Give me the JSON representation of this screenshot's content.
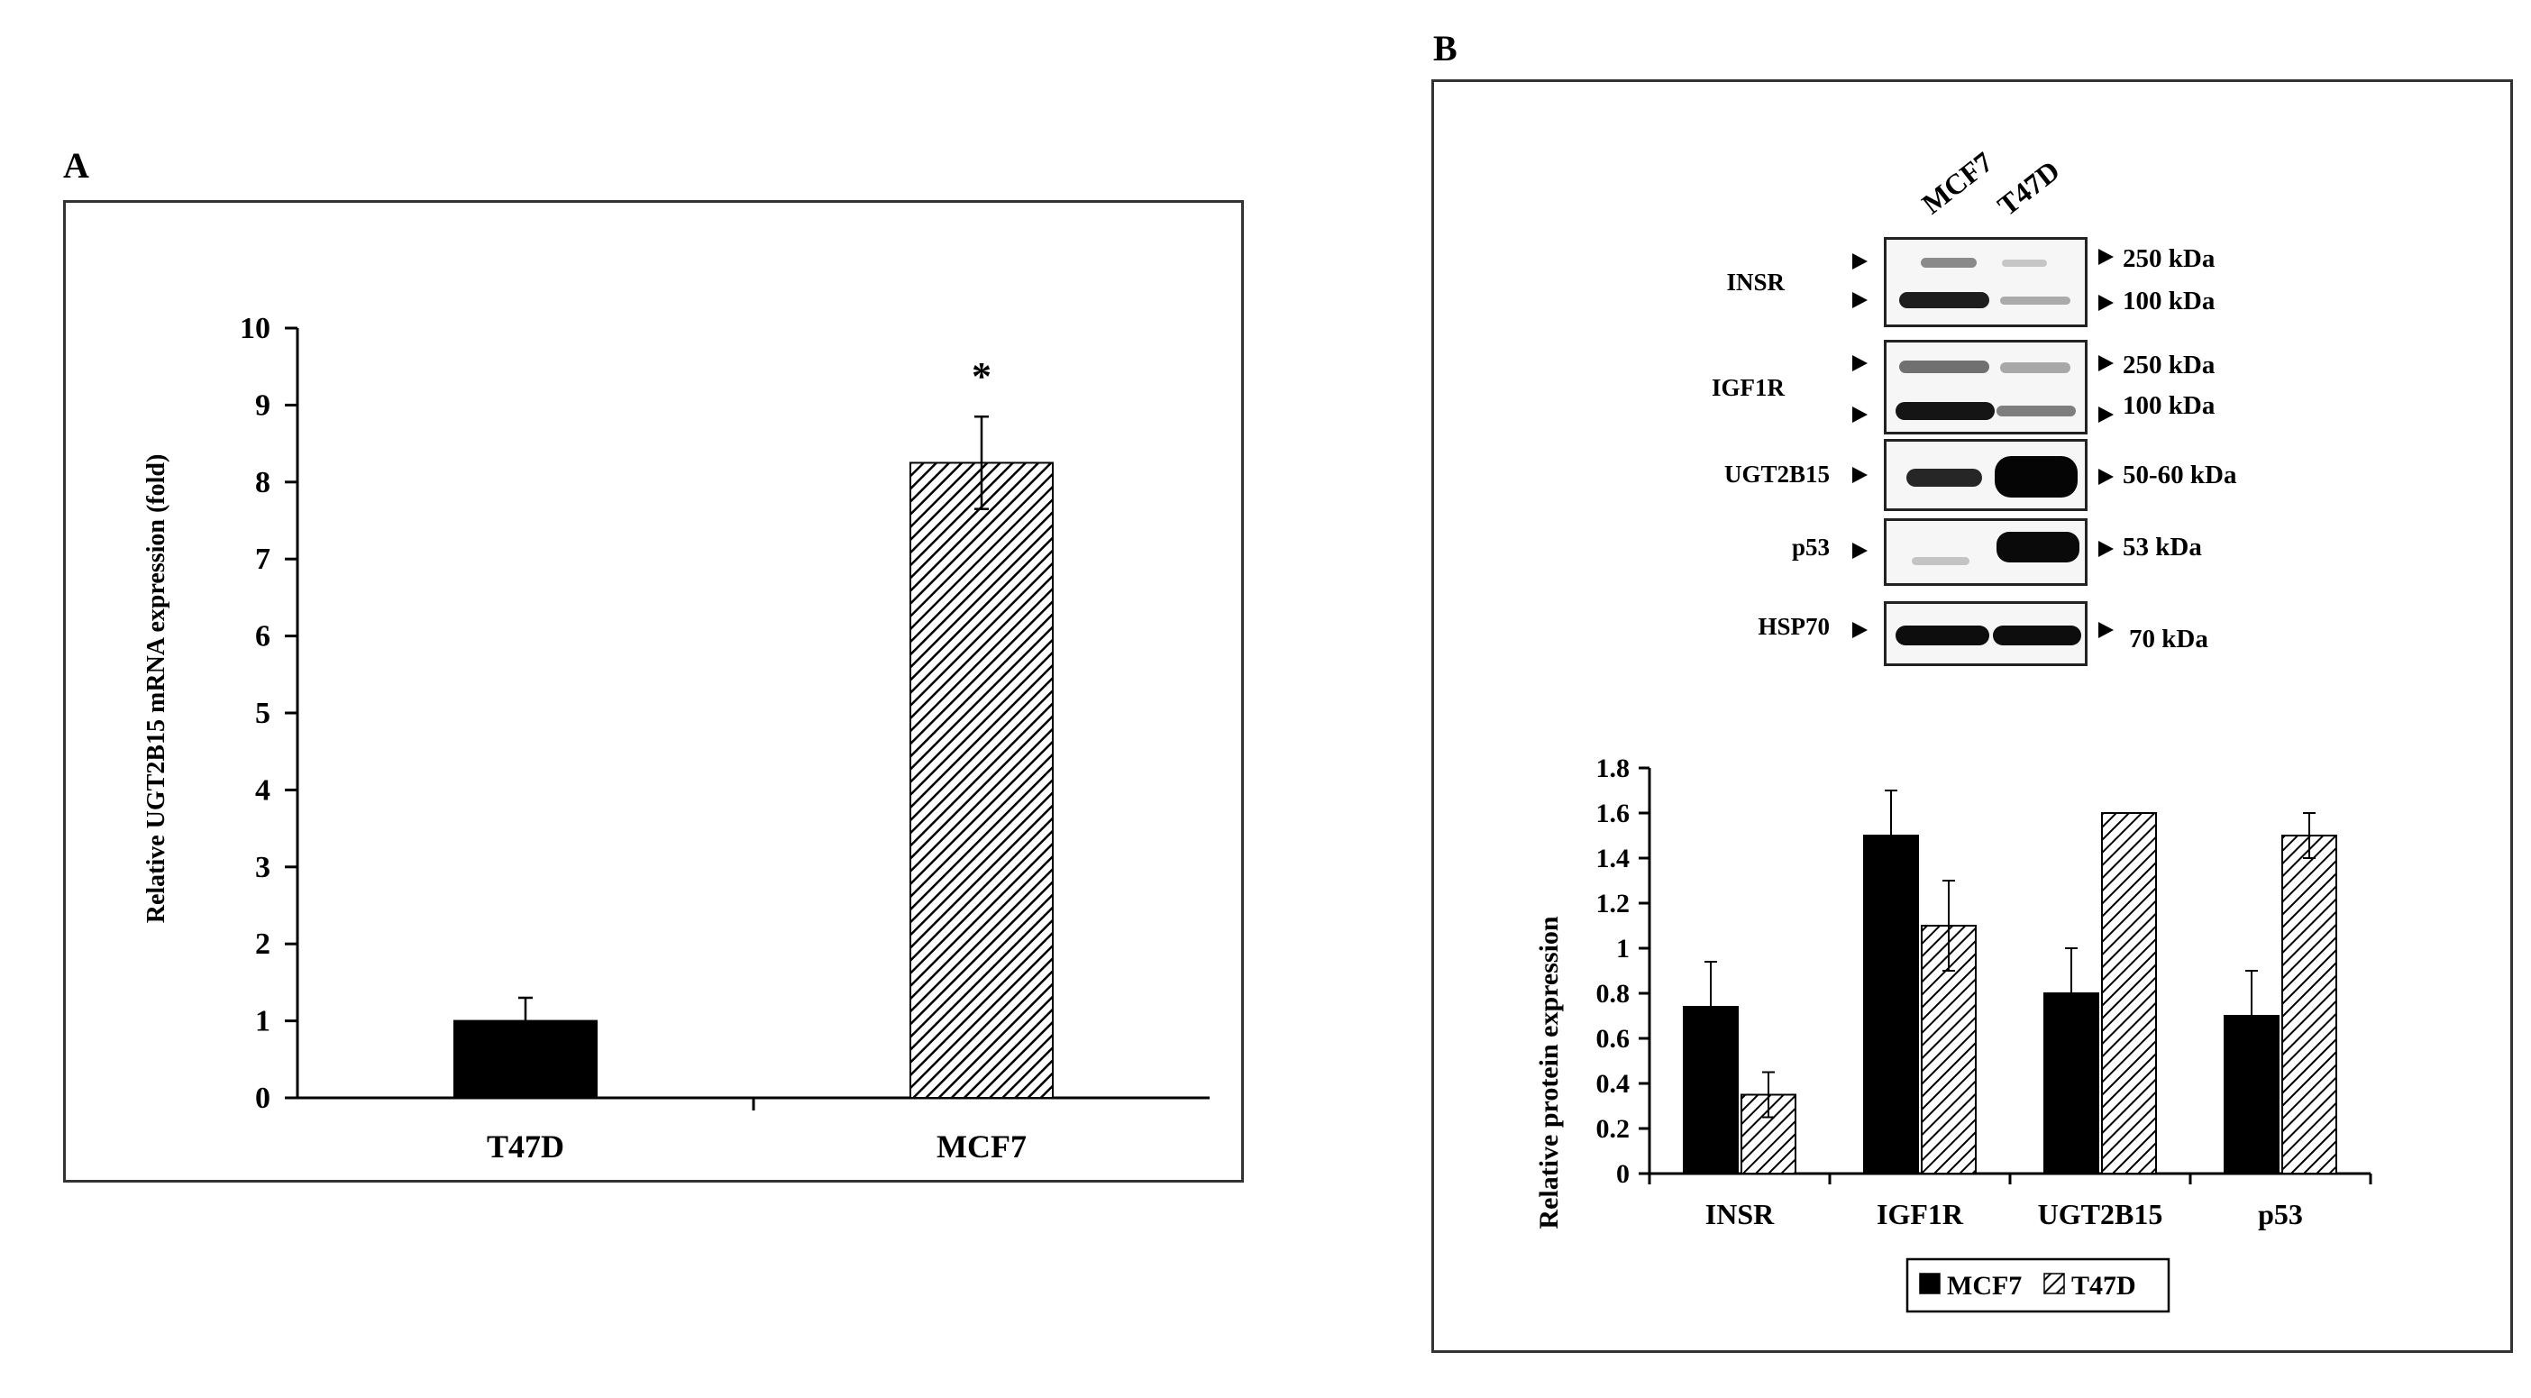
{
  "panel_a": {
    "letter": "A"
  },
  "panel_b": {
    "letter": "B"
  },
  "chart_data": [
    {
      "type": "bar",
      "title": "",
      "categories": [
        "T47D",
        "MCF7"
      ],
      "values": [
        1.0,
        8.25
      ],
      "errors": [
        0.3,
        0.6
      ],
      "annotations": [
        "",
        "*"
      ],
      "xlabel": "",
      "ylabel": "Relative UGT2B15 mRNA expression (fold)",
      "ylim": [
        0,
        10
      ],
      "yticks": [
        "0",
        "1",
        "2",
        "3",
        "4",
        "5",
        "6",
        "7",
        "8",
        "9",
        "10"
      ],
      "grid": false,
      "fills": [
        "solid",
        "hatched"
      ]
    },
    {
      "type": "bar",
      "title": "",
      "categories": [
        "INSR",
        "IGF1R",
        "UGT2B15",
        "p53"
      ],
      "series": [
        {
          "name": "MCF7",
          "values": [
            0.74,
            1.5,
            0.8,
            0.7
          ],
          "errors": [
            0.2,
            0.2,
            0.2,
            0.2
          ],
          "fill": "solid"
        },
        {
          "name": "T47D",
          "values": [
            0.35,
            1.1,
            1.6,
            1.5
          ],
          "errors": [
            0.1,
            0.2,
            0,
            0.1
          ],
          "fill": "hatched"
        }
      ],
      "xlabel": "",
      "ylabel": "Relative protein expression",
      "ylim": [
        0,
        1.8
      ],
      "yticks": [
        "0",
        "0.2",
        "0.4",
        "0.6",
        "0.8",
        "1",
        "1.2",
        "1.4",
        "1.6",
        "1.8"
      ],
      "grid": false,
      "legend": "bottom"
    }
  ],
  "western_blot": {
    "lanes": [
      "MCF7",
      "T47D"
    ],
    "rows": [
      {
        "label": "INSR",
        "markers": [
          "250 kDa",
          "100 kDa"
        ]
      },
      {
        "label": "IGF1R",
        "markers": [
          "250 kDa",
          "100 kDa"
        ]
      },
      {
        "label": "UGT2B15",
        "markers": [
          "50-60 kDa"
        ]
      },
      {
        "label": "p53",
        "markers": [
          "53 kDa"
        ]
      },
      {
        "label": "HSP70",
        "markers": [
          "70 kDa"
        ]
      }
    ]
  }
}
